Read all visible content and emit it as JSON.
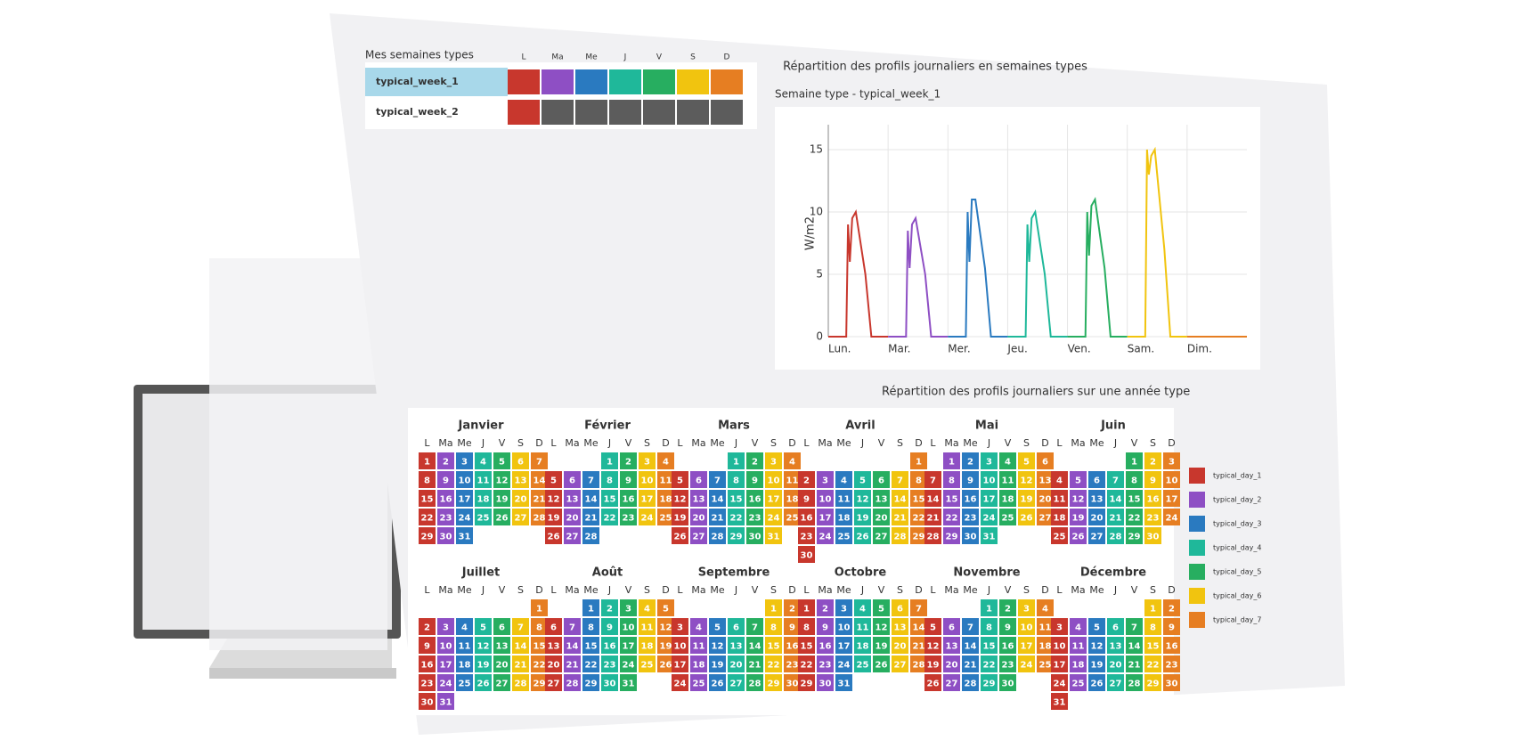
{
  "week_table": {
    "title": "Mes semaines types",
    "day_headers": [
      "L",
      "Ma",
      "Me",
      "J",
      "V",
      "S",
      "D"
    ],
    "rows": [
      {
        "name": "typical_week_1",
        "selected": true,
        "cells": [
          "#c8372d",
          "#8e4fc4",
          "#2a7ac0",
          "#1fb89a",
          "#27ae60",
          "#f1c40f",
          "#e67e22"
        ]
      },
      {
        "name": "typical_week_2",
        "selected": false,
        "cells": [
          "#c8372d",
          "#5c5c5c",
          "#5c5c5c",
          "#5c5c5c",
          "#5c5c5c",
          "#5c5c5c",
          "#5c5c5c"
        ]
      }
    ]
  },
  "section_title_weeks": "Répartition des profils journaliers en semaines types",
  "chart_data": {
    "type": "line",
    "title": "Semaine type - typical_week_1",
    "y_label": "W/m2",
    "xlim": [
      0,
      7
    ],
    "xticks": [
      {
        "value": 0,
        "label": "Lun."
      },
      {
        "value": 1,
        "label": "Mar."
      },
      {
        "value": 2,
        "label": "Mer."
      },
      {
        "value": 3,
        "label": "Jeu."
      },
      {
        "value": 4,
        "label": "Ven."
      },
      {
        "value": 5,
        "label": "Sam."
      },
      {
        "value": 6,
        "label": "Dim."
      }
    ],
    "ylim": [
      0,
      17
    ],
    "yticks": [
      0,
      5,
      10,
      15
    ],
    "grid": true,
    "series": [
      {
        "name": "typical_day_1",
        "color": "#c8372d",
        "x": [
          0,
          0.3,
          0.33,
          0.36,
          0.4,
          0.46,
          0.62,
          0.72,
          1
        ],
        "values": [
          0,
          0,
          9,
          6,
          9.5,
          10,
          5,
          0,
          0
        ]
      },
      {
        "name": "typical_day_2",
        "color": "#8e4fc4",
        "x": [
          1,
          1.3,
          1.33,
          1.36,
          1.4,
          1.46,
          1.62,
          1.72,
          2
        ],
        "values": [
          0,
          0,
          8.5,
          5.5,
          9,
          9.5,
          5,
          0,
          0
        ]
      },
      {
        "name": "typical_day_3",
        "color": "#2a7ac0",
        "x": [
          2,
          2.3,
          2.33,
          2.36,
          2.4,
          2.46,
          2.62,
          2.72,
          3
        ],
        "values": [
          0,
          0,
          10,
          6,
          11,
          11,
          5.5,
          0,
          0
        ]
      },
      {
        "name": "typical_day_4",
        "color": "#1fb89a",
        "x": [
          3,
          3.3,
          3.33,
          3.36,
          3.4,
          3.46,
          3.62,
          3.72,
          4
        ],
        "values": [
          0,
          0,
          9,
          6,
          9.5,
          10,
          5,
          0,
          0
        ]
      },
      {
        "name": "typical_day_5",
        "color": "#27ae60",
        "x": [
          4,
          4.3,
          4.33,
          4.36,
          4.4,
          4.46,
          4.62,
          4.72,
          5
        ],
        "values": [
          0,
          0,
          10,
          6.5,
          10.5,
          11,
          5.5,
          0,
          0
        ]
      },
      {
        "name": "typical_day_6",
        "color": "#f1c40f",
        "x": [
          5,
          5.3,
          5.33,
          5.36,
          5.4,
          5.46,
          5.62,
          5.72,
          6
        ],
        "values": [
          0,
          0,
          15,
          13,
          14.5,
          15,
          7,
          0,
          0
        ]
      },
      {
        "name": "typical_day_7",
        "color": "#e67e22",
        "x": [
          6,
          7
        ],
        "values": [
          0,
          0
        ]
      }
    ]
  },
  "calendar": {
    "title": "Répartition des profils journaliers sur une année type",
    "day_headers": [
      "L",
      "Ma",
      "Me",
      "J",
      "V",
      "S",
      "D"
    ],
    "months": [
      {
        "name": "Janvier",
        "first_weekday": 0,
        "days": [
          1,
          2,
          3,
          4,
          5,
          6,
          7,
          8,
          9,
          10,
          11,
          12,
          13,
          14,
          15,
          16,
          17,
          18,
          19,
          20,
          21,
          22,
          23,
          24,
          25,
          26,
          27,
          28,
          29,
          30,
          31
        ]
      },
      {
        "name": "Février",
        "first_weekday": 3,
        "days": [
          1,
          2,
          3,
          4,
          5,
          6,
          7,
          8,
          9,
          10,
          11,
          12,
          13,
          14,
          15,
          16,
          17,
          18,
          19,
          20,
          21,
          22,
          23,
          24,
          25,
          26,
          27,
          28
        ]
      },
      {
        "name": "Mars",
        "first_weekday": 3,
        "days": [
          1,
          2,
          3,
          4,
          5,
          6,
          7,
          8,
          9,
          10,
          11,
          12,
          13,
          14,
          15,
          16,
          17,
          18,
          19,
          20,
          21,
          22,
          23,
          24,
          25,
          26,
          27,
          28,
          29,
          30,
          31
        ]
      },
      {
        "name": "Avril",
        "first_weekday": 6,
        "days": [
          1,
          2,
          3,
          4,
          5,
          6,
          7,
          8,
          9,
          10,
          11,
          12,
          13,
          14,
          15,
          16,
          17,
          18,
          19,
          20,
          21,
          22,
          23,
          24,
          25,
          26,
          27,
          28,
          29,
          30
        ]
      },
      {
        "name": "Mai",
        "first_weekday": 1,
        "days": [
          1,
          2,
          3,
          4,
          5,
          6,
          7,
          8,
          9,
          10,
          11,
          12,
          13,
          14,
          15,
          16,
          17,
          18,
          19,
          20,
          21,
          22,
          23,
          24,
          25,
          26,
          27,
          28,
          29,
          30,
          31
        ]
      },
      {
        "name": "Juin",
        "first_weekday": 4,
        "days": [
          1,
          2,
          3,
          4,
          5,
          6,
          7,
          8,
          9,
          10,
          11,
          12,
          13,
          14,
          15,
          16,
          17,
          18,
          19,
          20,
          21,
          22,
          23,
          24,
          25,
          26,
          27,
          28,
          29,
          30
        ]
      },
      {
        "name": "Juillet",
        "first_weekday": 6,
        "days": [
          1,
          2,
          3,
          4,
          5,
          6,
          7,
          8,
          9,
          10,
          11,
          12,
          13,
          14,
          15,
          16,
          17,
          18,
          19,
          20,
          21,
          22,
          23,
          24,
          25,
          26,
          27,
          28,
          29,
          30,
          31
        ]
      },
      {
        "name": "Août",
        "first_weekday": 2,
        "days": [
          1,
          2,
          3,
          4,
          5,
          6,
          7,
          8,
          9,
          10,
          11,
          12,
          13,
          14,
          15,
          16,
          17,
          18,
          19,
          20,
          21,
          22,
          23,
          24,
          25,
          26,
          27,
          28,
          29,
          30,
          31
        ]
      },
      {
        "name": "Septembre",
        "first_weekday": 5,
        "days": [
          1,
          2,
          3,
          4,
          5,
          6,
          7,
          8,
          9,
          10,
          11,
          12,
          13,
          14,
          15,
          16,
          17,
          18,
          19,
          20,
          21,
          22,
          23,
          24,
          25,
          26,
          27,
          28,
          29,
          30
        ]
      },
      {
        "name": "Octobre",
        "first_weekday": 0,
        "days": [
          1,
          2,
          3,
          4,
          5,
          6,
          7,
          8,
          9,
          10,
          11,
          12,
          13,
          14,
          15,
          16,
          17,
          18,
          19,
          20,
          21,
          22,
          23,
          24,
          25,
          26,
          27,
          28,
          29,
          30,
          31
        ]
      },
      {
        "name": "Novembre",
        "first_weekday": 3,
        "days": [
          1,
          2,
          3,
          4,
          5,
          6,
          7,
          8,
          9,
          10,
          11,
          12,
          13,
          14,
          15,
          16,
          17,
          18,
          19,
          20,
          21,
          22,
          23,
          24,
          25,
          26,
          27,
          28,
          29,
          30
        ]
      },
      {
        "name": "Décembre",
        "first_weekday": 5,
        "days": [
          1,
          2,
          3,
          4,
          5,
          6,
          7,
          8,
          9,
          10,
          11,
          12,
          13,
          14,
          15,
          16,
          17,
          18,
          19,
          20,
          21,
          22,
          23,
          24,
          25,
          26,
          27,
          28,
          29,
          30,
          31
        ]
      }
    ],
    "legend": [
      {
        "name": "typical_day_1",
        "color": "#c8372d"
      },
      {
        "name": "typical_day_2",
        "color": "#8e4fc4"
      },
      {
        "name": "typical_day_3",
        "color": "#2a7ac0"
      },
      {
        "name": "typical_day_4",
        "color": "#1fb89a"
      },
      {
        "name": "typical_day_5",
        "color": "#27ae60"
      },
      {
        "name": "typical_day_6",
        "color": "#f1c40f"
      },
      {
        "name": "typical_day_7",
        "color": "#e67e22"
      }
    ]
  }
}
